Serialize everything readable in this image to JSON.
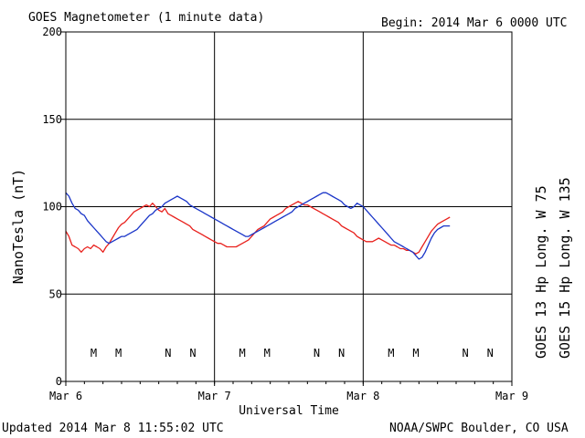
{
  "header": {
    "title": "GOES Magnetometer (1 minute data)",
    "begin": "Begin:  2014 Mar 6 0000 UTC"
  },
  "footer": {
    "updated": "Updated 2014 Mar  8 11:55:02 UTC",
    "credit": "NOAA/SWPC Boulder, CO USA"
  },
  "colors": {
    "goes13": "#e8201c",
    "goes15": "#1a35c8",
    "grid": "#000000"
  },
  "chart_data": {
    "type": "line",
    "title": "GOES Magnetometer (1 minute data)",
    "xlabel": "Universal Time",
    "ylabel": "NanoTesla (nT)",
    "xlim": [
      0,
      72
    ],
    "ylim": [
      0,
      200
    ],
    "x_unit": "hours since 2014 Mar 6 0000 UTC",
    "x_ticks": [
      {
        "label": "Mar 6",
        "value": 0
      },
      {
        "label": "Mar 7",
        "value": 24
      },
      {
        "label": "Mar 8",
        "value": 48
      },
      {
        "label": "Mar 9",
        "value": 72
      }
    ],
    "y_ticks": [
      0,
      50,
      100,
      150,
      200
    ],
    "grid": true,
    "series": [
      {
        "name": "GOES 13 Hp  Long. W 75",
        "color": "#e8201c",
        "x": [
          0,
          0.5,
          1,
          1.5,
          2,
          2.5,
          3,
          3.5,
          4,
          4.5,
          5,
          5.5,
          6,
          6.5,
          7,
          7.5,
          8,
          8.5,
          9,
          9.5,
          10,
          10.5,
          11,
          11.5,
          12,
          12.5,
          13,
          13.5,
          14,
          14.5,
          15,
          15.5,
          16,
          16.5,
          17,
          17.5,
          18,
          18.5,
          19,
          19.5,
          20,
          20.5,
          21,
          21.5,
          22,
          22.5,
          23,
          23.5,
          24,
          24.5,
          25,
          25.5,
          26,
          26.5,
          27,
          27.5,
          28,
          28.5,
          29,
          29.5,
          30,
          30.5,
          31,
          31.5,
          32,
          32.5,
          33,
          33.5,
          34,
          34.5,
          35,
          35.5,
          36,
          36.5,
          37,
          37.5,
          38,
          38.5,
          39,
          39.5,
          40,
          40.5,
          41,
          41.5,
          42,
          42.5,
          43,
          43.5,
          44,
          44.5,
          45,
          45.5,
          46,
          46.5,
          47,
          47.5,
          48,
          48.5,
          49,
          49.5,
          50,
          50.5,
          51,
          51.5,
          52,
          52.5,
          53,
          53.5,
          54,
          54.5,
          55,
          55.5,
          56,
          56.5,
          57,
          57.5,
          58,
          58.5,
          59,
          59.5,
          60,
          60.5,
          61,
          61.5,
          62
        ],
        "values": [
          86,
          83,
          78,
          77,
          76,
          74,
          76,
          77,
          76,
          78,
          77,
          76,
          74,
          77,
          79,
          82,
          85,
          88,
          90,
          91,
          93,
          95,
          97,
          98,
          99,
          100,
          101,
          100,
          102,
          100,
          98,
          97,
          99,
          96,
          95,
          94,
          93,
          92,
          91,
          90,
          89,
          87,
          86,
          85,
          84,
          83,
          82,
          81,
          80,
          79,
          79,
          78,
          77,
          77,
          77,
          77,
          78,
          79,
          80,
          81,
          83,
          85,
          87,
          88,
          89,
          91,
          93,
          94,
          95,
          96,
          97,
          99,
          100,
          101,
          102,
          103,
          102,
          101,
          101,
          100,
          99,
          98,
          97,
          96,
          95,
          94,
          93,
          92,
          91,
          89,
          88,
          87,
          86,
          85,
          83,
          82,
          81,
          80,
          80,
          80,
          81,
          82,
          81,
          80,
          79,
          78,
          78,
          77,
          76,
          76,
          75,
          75,
          74,
          73,
          74,
          77,
          80,
          83,
          86,
          88,
          90,
          91,
          92,
          93,
          94
        ]
      },
      {
        "name": "GOES 15 Hp  Long. W 135",
        "color": "#1a35c8",
        "x": [
          0,
          0.5,
          1,
          1.5,
          2,
          2.5,
          3,
          3.5,
          4,
          4.5,
          5,
          5.5,
          6,
          6.5,
          7,
          7.5,
          8,
          8.5,
          9,
          9.5,
          10,
          10.5,
          11,
          11.5,
          12,
          12.5,
          13,
          13.5,
          14,
          14.5,
          15,
          15.5,
          16,
          16.5,
          17,
          17.5,
          18,
          18.5,
          19,
          19.5,
          20,
          20.5,
          21,
          21.5,
          22,
          22.5,
          23,
          23.5,
          24,
          24.5,
          25,
          25.5,
          26,
          26.5,
          27,
          27.5,
          28,
          28.5,
          29,
          29.5,
          30,
          30.5,
          31,
          31.5,
          32,
          32.5,
          33,
          33.5,
          34,
          34.5,
          35,
          35.5,
          36,
          36.5,
          37,
          37.5,
          38,
          38.5,
          39,
          39.5,
          40,
          40.5,
          41,
          41.5,
          42,
          42.5,
          43,
          43.5,
          44,
          44.5,
          45,
          45.5,
          46,
          46.5,
          47,
          47.5,
          48,
          48.5,
          49,
          49.5,
          50,
          50.5,
          51,
          51.5,
          52,
          52.5,
          53,
          53.5,
          54,
          54.5,
          55,
          55.5,
          56,
          56.5,
          57,
          57.5,
          58,
          58.5,
          59,
          59.5,
          60,
          60.5,
          61,
          61.5,
          62
        ],
        "values": [
          108,
          106,
          102,
          99,
          98,
          96,
          95,
          92,
          90,
          88,
          86,
          84,
          82,
          80,
          79,
          80,
          81,
          82,
          83,
          83,
          84,
          85,
          86,
          87,
          89,
          91,
          93,
          95,
          96,
          98,
          99,
          100,
          102,
          103,
          104,
          105,
          106,
          105,
          104,
          103,
          101,
          100,
          99,
          98,
          97,
          96,
          95,
          94,
          93,
          92,
          91,
          90,
          89,
          88,
          87,
          86,
          85,
          84,
          83,
          83,
          84,
          85,
          86,
          87,
          88,
          89,
          90,
          91,
          92,
          93,
          94,
          95,
          96,
          97,
          99,
          100,
          101,
          102,
          103,
          104,
          105,
          106,
          107,
          108,
          108,
          107,
          106,
          105,
          104,
          103,
          101,
          100,
          99,
          100,
          102,
          101,
          100,
          98,
          96,
          94,
          92,
          90,
          88,
          86,
          84,
          82,
          80,
          79,
          78,
          77,
          76,
          75,
          74,
          72,
          70,
          71,
          74,
          78,
          82,
          85,
          87,
          88,
          89,
          89,
          89
        ]
      }
    ],
    "markers": [
      {
        "label": "M",
        "x": 4.5,
        "series": "GOES 13 Hp  Long. W 75"
      },
      {
        "label": "M",
        "x": 8.5,
        "series": "GOES 15 Hp  Long. W 135"
      },
      {
        "label": "N",
        "x": 16.5,
        "series": "GOES 13 Hp  Long. W 75"
      },
      {
        "label": "N",
        "x": 20.5,
        "series": "GOES 15 Hp  Long. W 135"
      },
      {
        "label": "M",
        "x": 28.5,
        "series": "GOES 13 Hp  Long. W 75"
      },
      {
        "label": "M",
        "x": 32.5,
        "series": "GOES 15 Hp  Long. W 135"
      },
      {
        "label": "N",
        "x": 40.5,
        "series": "GOES 13 Hp  Long. W 75"
      },
      {
        "label": "N",
        "x": 44.5,
        "series": "GOES 15 Hp  Long. W 135"
      },
      {
        "label": "M",
        "x": 52.5,
        "series": "GOES 13 Hp  Long. W 75"
      },
      {
        "label": "M",
        "x": 56.5,
        "series": "GOES 15 Hp  Long. W 135"
      },
      {
        "label": "N",
        "x": 64.5,
        "series": "GOES 13 Hp  Long. W 75"
      },
      {
        "label": "N",
        "x": 68.5,
        "series": "GOES 15 Hp  Long. W 135"
      }
    ],
    "legend": {
      "placement": "right",
      "entries": [
        "GOES 13 Hp  Long. W 75",
        "GOES 15 Hp  Long. W 135"
      ]
    }
  }
}
